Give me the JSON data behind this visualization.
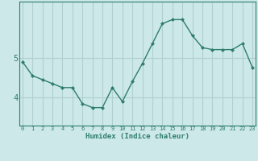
{
  "x": [
    0,
    1,
    2,
    3,
    4,
    5,
    6,
    7,
    8,
    9,
    10,
    11,
    12,
    13,
    14,
    15,
    16,
    17,
    18,
    19,
    20,
    21,
    22,
    23
  ],
  "y": [
    4.9,
    4.55,
    4.45,
    4.35,
    4.25,
    4.25,
    3.85,
    3.75,
    3.75,
    4.25,
    3.9,
    4.4,
    4.85,
    5.35,
    5.85,
    5.95,
    5.95,
    5.55,
    5.25,
    5.2,
    5.2,
    5.2,
    5.35,
    4.75
  ],
  "line_color": "#2e7d6e",
  "bg_color": "#cce8e8",
  "grid_color": "#b0d0d0",
  "text_color": "#2e7d6e",
  "xlabel": "Humidex (Indice chaleur)",
  "yticks": [
    4,
    5
  ],
  "ylim": [
    3.3,
    6.4
  ],
  "xlim": [
    -0.3,
    23.3
  ]
}
